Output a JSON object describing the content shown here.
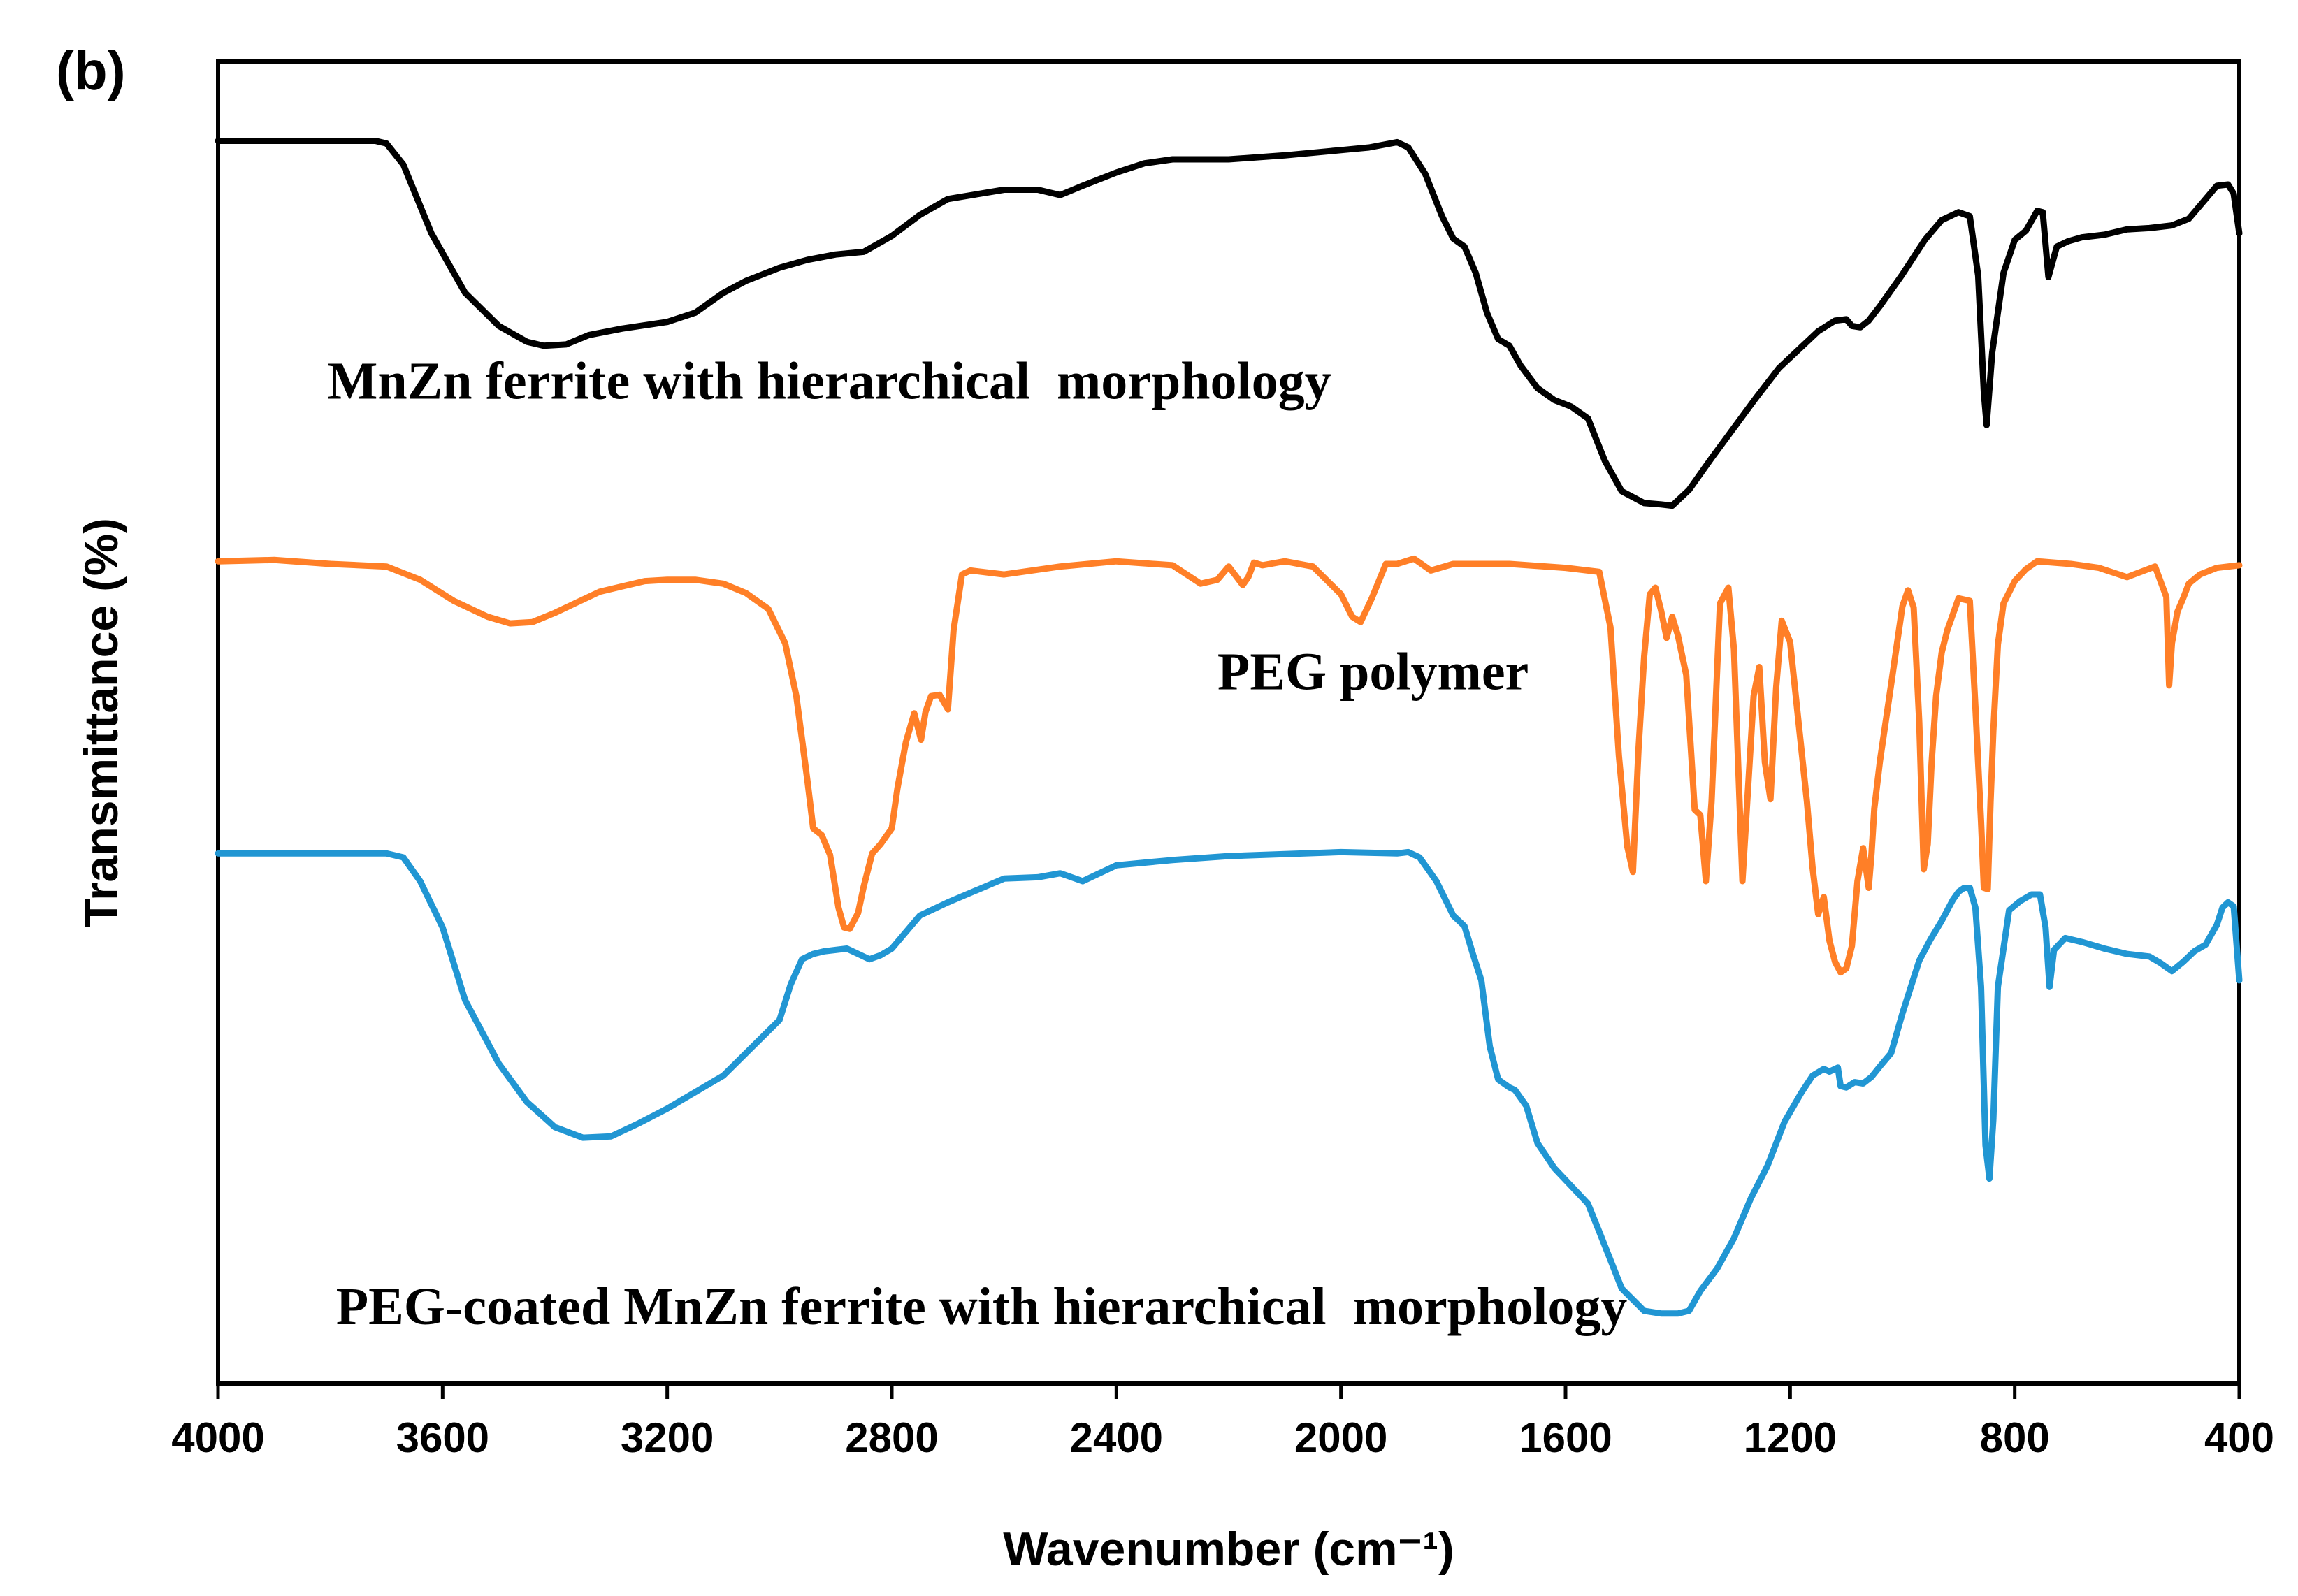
{
  "chart_data": {
    "type": "line",
    "panel_label": "(b)",
    "title": "",
    "xlabel": "Wavenumber (cm⁻¹)",
    "ylabel": "Transmittance (%)",
    "xlim": [
      4000,
      400
    ],
    "ylim": [
      0,
      100
    ],
    "x_reversed": true,
    "y_ticks_shown": false,
    "grid": false,
    "xticks": [
      4000,
      3600,
      3200,
      2800,
      2400,
      2000,
      1600,
      1200,
      800,
      400
    ],
    "xtick_labels": [
      "4000",
      "3600",
      "3200",
      "2800",
      "2400",
      "2000",
      "1600",
      "1200",
      "800",
      "400"
    ],
    "series": [
      {
        "name": "MnZn ferrite with hierarchical  morphology",
        "color": "#000000",
        "x": [
          4000,
          3850,
          3720,
          3700,
          3670,
          3620,
          3560,
          3500,
          3450,
          3420,
          3380,
          3340,
          3280,
          3200,
          3150,
          3100,
          3060,
          3000,
          2950,
          2900,
          2850,
          2800,
          2750,
          2700,
          2600,
          2540,
          2500,
          2460,
          2400,
          2350,
          2300,
          2200,
          2100,
          2000,
          1950,
          1900,
          1880,
          1850,
          1820,
          1800,
          1780,
          1760,
          1740,
          1720,
          1700,
          1680,
          1650,
          1620,
          1590,
          1560,
          1530,
          1500,
          1460,
          1430,
          1410,
          1380,
          1340,
          1300,
          1260,
          1220,
          1180,
          1150,
          1120,
          1100,
          1090,
          1075,
          1060,
          1040,
          1000,
          960,
          930,
          900,
          880,
          865,
          855,
          850,
          840,
          820,
          800,
          780,
          760,
          750,
          740,
          725,
          705,
          680,
          640,
          600,
          560,
          520,
          490,
          460,
          440,
          420,
          410,
          400
        ],
        "y": [
          94.0,
          94.0,
          94.0,
          93.8,
          92.2,
          87.0,
          82.5,
          80.0,
          78.8,
          78.5,
          78.6,
          79.3,
          79.8,
          80.3,
          81.0,
          82.5,
          83.4,
          84.4,
          85.0,
          85.4,
          85.6,
          86.8,
          88.4,
          89.6,
          90.3,
          90.3,
          89.9,
          90.6,
          91.6,
          92.3,
          92.6,
          92.6,
          92.9,
          93.3,
          93.5,
          93.9,
          93.5,
          91.5,
          88.3,
          86.6,
          86.0,
          84.0,
          81.0,
          79.0,
          78.5,
          77.0,
          75.3,
          74.4,
          73.9,
          73.0,
          69.8,
          67.5,
          66.6,
          66.5,
          66.4,
          67.6,
          70.0,
          72.3,
          74.6,
          76.8,
          78.4,
          79.6,
          80.4,
          80.5,
          80.0,
          79.9,
          80.4,
          81.5,
          83.9,
          86.5,
          88.0,
          88.6,
          88.3,
          83.8,
          75.0,
          72.5,
          78.0,
          84.0,
          86.5,
          87.2,
          88.7,
          88.6,
          83.7,
          86.0,
          86.4,
          86.7,
          86.9,
          87.3,
          87.4,
          87.6,
          88.1,
          89.6,
          90.6,
          90.7,
          90.0,
          87.0
        ]
      },
      {
        "name": "PEG polymer",
        "color": "#FF7F27",
        "x": [
          4000,
          3900,
          3800,
          3700,
          3640,
          3580,
          3520,
          3480,
          3440,
          3400,
          3360,
          3320,
          3280,
          3240,
          3200,
          3150,
          3100,
          3060,
          3020,
          2990,
          2970,
          2950,
          2940,
          2925,
          2910,
          2895,
          2885,
          2875,
          2860,
          2850,
          2835,
          2820,
          2800,
          2790,
          2775,
          2760,
          2748,
          2740,
          2730,
          2715,
          2700,
          2690,
          2675,
          2660,
          2600,
          2500,
          2400,
          2300,
          2250,
          2220,
          2200,
          2175,
          2165,
          2155,
          2140,
          2100,
          2050,
          2000,
          1980,
          1965,
          1945,
          1920,
          1900,
          1870,
          1840,
          1800,
          1700,
          1600,
          1540,
          1520,
          1505,
          1490,
          1480,
          1470,
          1460,
          1450,
          1440,
          1430,
          1420,
          1410,
          1400,
          1385,
          1370,
          1360,
          1350,
          1340,
          1325,
          1310,
          1300,
          1285,
          1275,
          1265,
          1255,
          1245,
          1235,
          1225,
          1215,
          1200,
          1185,
          1170,
          1160,
          1150,
          1140,
          1130,
          1120,
          1110,
          1100,
          1090,
          1080,
          1070,
          1060,
          1055,
          1050,
          1040,
          1020,
          1000,
          990,
          980,
          970,
          962,
          955,
          948,
          940,
          930,
          920,
          900,
          880,
          870,
          860,
          855,
          848,
          843,
          838,
          830,
          820,
          800,
          780,
          760,
          700,
          650,
          600,
          550,
          530,
          525,
          520,
          510,
          500,
          490,
          470,
          440,
          400
        ],
        "y": [
          62.2,
          62.3,
          62.0,
          61.8,
          60.8,
          59.2,
          58.0,
          57.5,
          57.6,
          58.3,
          59.1,
          59.9,
          60.3,
          60.7,
          60.8,
          60.8,
          60.5,
          59.8,
          58.6,
          56.0,
          52.0,
          45.5,
          42.0,
          41.5,
          40.0,
          36.0,
          34.5,
          34.4,
          35.6,
          37.6,
          40.1,
          40.8,
          42.0,
          45.0,
          48.5,
          50.7,
          48.7,
          50.8,
          52.0,
          52.1,
          51.0,
          57.0,
          61.2,
          61.5,
          61.2,
          61.8,
          62.2,
          61.9,
          60.5,
          60.8,
          61.8,
          60.4,
          61.0,
          62.1,
          61.9,
          62.2,
          61.8,
          59.7,
          58.0,
          57.6,
          59.4,
          62.0,
          62.0,
          62.4,
          61.5,
          62.0,
          62.0,
          61.7,
          61.4,
          57.2,
          47.5,
          40.6,
          38.7,
          48.0,
          55.0,
          59.7,
          60.2,
          58.5,
          56.4,
          58.0,
          56.6,
          53.6,
          43.4,
          43.0,
          38.0,
          44.0,
          59.0,
          60.2,
          55.5,
          38.0,
          45.0,
          52.0,
          54.2,
          47.0,
          44.2,
          52.6,
          57.7,
          56.1,
          50.0,
          44.0,
          39.0,
          35.5,
          36.8,
          33.5,
          31.9,
          31.1,
          31.4,
          33.1,
          38.0,
          40.5,
          37.5,
          40.1,
          43.5,
          47.1,
          52.9,
          58.8,
          60.0,
          58.7,
          50.0,
          38.9,
          40.8,
          47.0,
          52.0,
          55.3,
          57.0,
          59.4,
          59.2,
          51.2,
          42.5,
          37.5,
          37.4,
          44.0,
          49.4,
          55.9,
          59.0,
          60.7,
          61.6,
          62.2,
          62.0,
          61.7,
          61.0,
          61.8,
          59.5,
          52.8,
          56.0,
          58.4,
          59.4,
          60.5,
          61.2,
          61.7,
          61.9
        ]
      },
      {
        "name": "PEG-coated MnZn ferrite with hierarchical  morphology",
        "color": "#2196D3",
        "x": [
          4000,
          3850,
          3700,
          3670,
          3640,
          3600,
          3560,
          3500,
          3450,
          3400,
          3350,
          3300,
          3250,
          3200,
          3100,
          3000,
          2980,
          2960,
          2940,
          2920,
          2900,
          2880,
          2860,
          2840,
          2820,
          2800,
          2750,
          2700,
          2650,
          2600,
          2540,
          2500,
          2460,
          2400,
          2300,
          2200,
          2000,
          1900,
          1880,
          1860,
          1830,
          1800,
          1780,
          1765,
          1750,
          1735,
          1720,
          1700,
          1690,
          1670,
          1650,
          1620,
          1580,
          1560,
          1540,
          1500,
          1460,
          1430,
          1400,
          1380,
          1360,
          1330,
          1300,
          1270,
          1240,
          1210,
          1180,
          1160,
          1140,
          1130,
          1115,
          1110,
          1100,
          1085,
          1070,
          1055,
          1040,
          1020,
          1000,
          970,
          950,
          930,
          910,
          900,
          890,
          880,
          870,
          860,
          852,
          845,
          838,
          830,
          810,
          790,
          770,
          755,
          745,
          738,
          730,
          710,
          680,
          640,
          600,
          560,
          540,
          520,
          500,
          480,
          460,
          440,
          430,
          420,
          410,
          400
        ],
        "y": [
          40.1,
          40.1,
          40.1,
          39.8,
          38.0,
          34.5,
          29.0,
          24.2,
          21.3,
          19.4,
          18.6,
          18.7,
          19.7,
          20.8,
          23.3,
          27.5,
          30.2,
          32.1,
          32.5,
          32.7,
          32.8,
          32.9,
          32.5,
          32.1,
          32.4,
          32.9,
          35.4,
          36.4,
          37.3,
          38.2,
          38.3,
          38.6,
          38.0,
          39.2,
          39.6,
          39.9,
          40.2,
          40.1,
          40.2,
          39.8,
          38.0,
          35.4,
          34.6,
          32.5,
          30.5,
          25.5,
          23.0,
          22.4,
          22.2,
          21.0,
          18.2,
          16.3,
          14.5,
          13.6,
          11.5,
          7.2,
          5.5,
          5.3,
          5.3,
          5.5,
          7.0,
          8.7,
          11.0,
          14.0,
          16.5,
          19.8,
          22.0,
          23.3,
          23.8,
          23.6,
          23.9,
          22.5,
          22.4,
          22.8,
          22.7,
          23.2,
          24.0,
          25.0,
          28.0,
          32.0,
          33.6,
          35.0,
          36.6,
          37.2,
          37.5,
          37.5,
          36.0,
          30.0,
          18.0,
          15.5,
          20.0,
          30.0,
          35.8,
          36.5,
          37.0,
          37.0,
          34.5,
          30.0,
          32.8,
          33.7,
          33.4,
          32.9,
          32.5,
          32.3,
          31.8,
          31.2,
          31.9,
          32.7,
          33.2,
          34.7,
          36.0,
          36.4,
          36.1,
          30.5
        ]
      }
    ],
    "annotations": [
      {
        "text": "MnZn ferrite with hierarchical  morphology",
        "x": 3805,
        "y": 74.5
      },
      {
        "text": "PEG polymer",
        "x": 2220,
        "y": 52.5
      },
      {
        "text": "PEG-coated MnZn ferrite with hierarchical  morphology",
        "x": 3790,
        "y": 4.5
      }
    ]
  }
}
